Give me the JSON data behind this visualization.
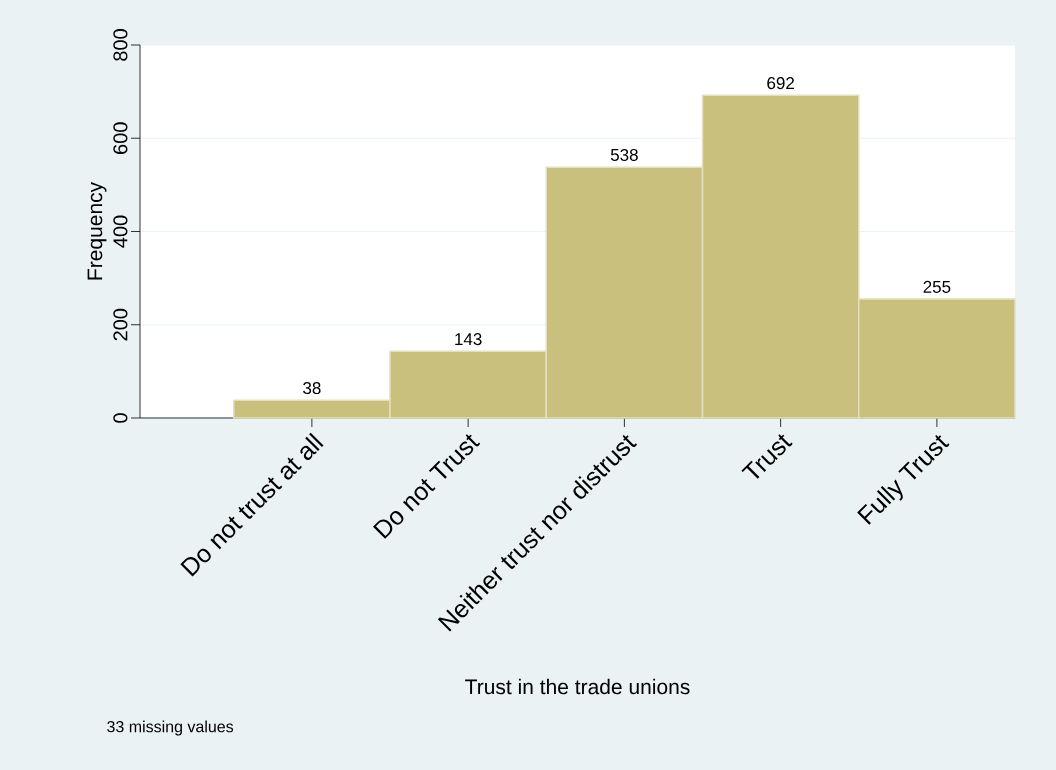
{
  "chart_data": {
    "type": "bar",
    "xlabel": "Trust in the trade unions",
    "ylabel": "Frequency",
    "categories": [
      "Do not trust at all",
      "Do not Trust",
      "Neither trust nor distrust",
      "Trust",
      "Fully Trust"
    ],
    "values": [
      38,
      143,
      538,
      692,
      255
    ],
    "color": "#c9c07e",
    "ylim": [
      0,
      800
    ],
    "yticks": [
      0,
      200,
      400,
      600,
      800
    ],
    "grid": "y",
    "data_labels": true,
    "annotations": [
      "33 missing values"
    ]
  }
}
